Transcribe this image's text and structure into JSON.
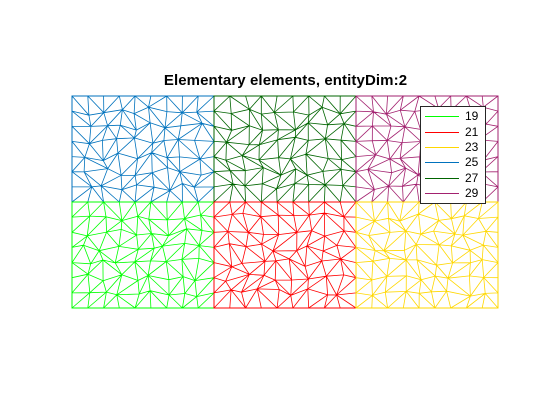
{
  "figure": {
    "title": "Elementary elements, entityDim:2"
  },
  "legend": {
    "placement": "top-right (inside axes)",
    "entries": [
      {
        "label": "19",
        "color": "#00ff00"
      },
      {
        "label": "21",
        "color": "#ff0000"
      },
      {
        "label": "23",
        "color": "#ffd700"
      },
      {
        "label": "25",
        "color": "#0072bd"
      },
      {
        "label": "27",
        "color": "#006400"
      },
      {
        "label": "29",
        "color": "#a2216f"
      }
    ]
  },
  "mesh": {
    "grid_cols": 3,
    "grid_rows": 2,
    "patches": [
      {
        "entity": "25",
        "col": 0,
        "row": 0,
        "color": "#0072bd"
      },
      {
        "entity": "27",
        "col": 1,
        "row": 0,
        "color": "#006400"
      },
      {
        "entity": "29",
        "col": 2,
        "row": 0,
        "color": "#a2216f"
      },
      {
        "entity": "19",
        "col": 0,
        "row": 1,
        "color": "#00ff00"
      },
      {
        "entity": "21",
        "col": 1,
        "row": 1,
        "color": "#ff0000"
      },
      {
        "entity": "23",
        "col": 2,
        "row": 1,
        "color": "#ffd700"
      }
    ]
  }
}
